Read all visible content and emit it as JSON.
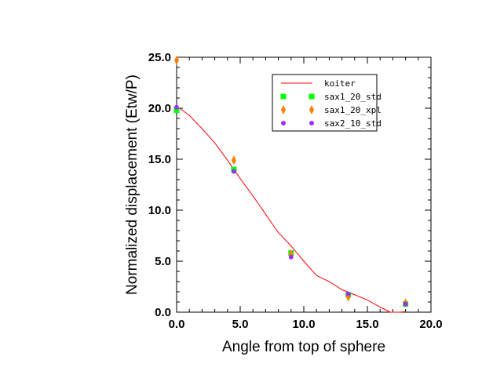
{
  "chart_data": {
    "type": "scatter",
    "title": "",
    "xlabel": "Angle from top of sphere",
    "ylabel": "Normalized displacement (Etw/P)",
    "xlim": [
      0.0,
      20.0
    ],
    "ylim": [
      0.0,
      25.0
    ],
    "x_ticks": [
      "0.0",
      "5.0",
      "10.0",
      "15.0",
      "20.0"
    ],
    "y_ticks": [
      "0.0",
      "5.0",
      "10.0",
      "15.0",
      "20.0",
      "25.0"
    ],
    "grid": false,
    "legend_position": "top-right",
    "series": [
      {
        "name": "koiter",
        "kind": "line",
        "color": "#ff0000",
        "x": [
          0.0,
          1.0,
          2.0,
          3.0,
          4.0,
          5.0,
          6.0,
          7.0,
          8.0,
          9.0,
          10.0,
          11.0,
          12.0,
          13.0,
          14.0,
          15.0,
          16.0,
          16.8,
          17.5,
          18.0
        ],
        "y": [
          20.2,
          19.3,
          18.0,
          16.6,
          14.9,
          13.1,
          11.4,
          9.6,
          7.8,
          6.5,
          5.0,
          3.6,
          3.0,
          2.2,
          1.7,
          1.2,
          0.5,
          0.0,
          0.0,
          0.05
        ]
      },
      {
        "name": "sax1_20_std",
        "kind": "marker",
        "marker": "square",
        "color": "#00ff00",
        "x": [
          0.0,
          4.5,
          9.0,
          13.5,
          18.0
        ],
        "y": [
          19.8,
          14.0,
          5.8,
          1.7,
          0.8
        ]
      },
      {
        "name": "sax1_20_xpl",
        "kind": "marker",
        "marker": "diamond",
        "color": "#ff7f00",
        "x": [
          0.0,
          4.5,
          9.0,
          13.5,
          18.0
        ],
        "y": [
          24.7,
          14.9,
          5.7,
          1.5,
          0.9
        ]
      },
      {
        "name": "sax2_10_std",
        "kind": "marker",
        "marker": "circle",
        "color": "#9b30ff",
        "x": [
          0.0,
          4.5,
          9.0,
          13.5,
          18.0
        ],
        "y": [
          20.1,
          13.8,
          5.4,
          1.8,
          0.8
        ]
      }
    ]
  }
}
